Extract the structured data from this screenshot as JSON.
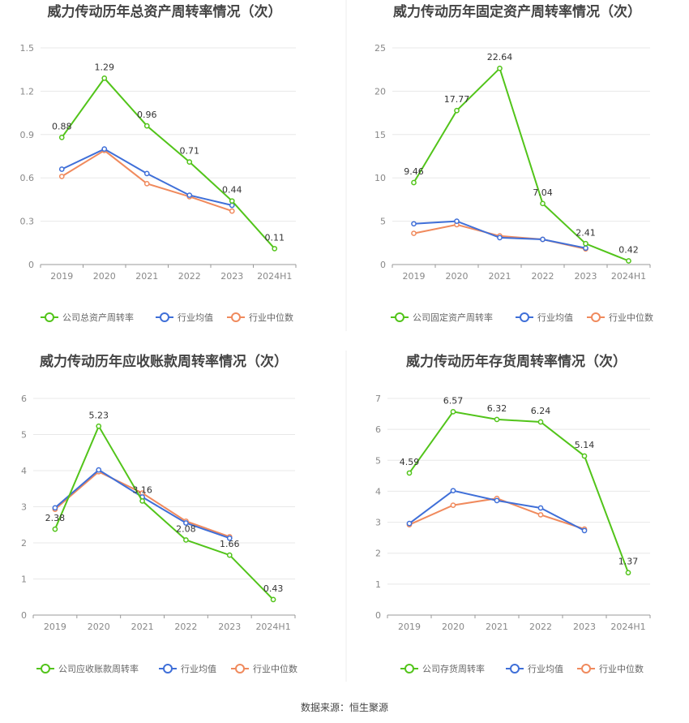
{
  "colors": {
    "company": "#52c41a",
    "mean": "#3f6fd8",
    "median": "#f08a5d"
  },
  "legend": {
    "mean": "行业均值",
    "median": "行业中位数"
  },
  "source": "数据来源：恒生聚源",
  "chart_data": [
    {
      "type": "line",
      "title": "威力传动历年总资产周转率情况（次）",
      "categories": [
        "2019",
        "2020",
        "2021",
        "2022",
        "2023",
        "2024H1"
      ],
      "yticks": [
        "0",
        "0.3",
        "0.6",
        "0.9",
        "1.2",
        "1.5"
      ],
      "ylim": [
        0,
        1.5
      ],
      "grid": true,
      "legend_position": "bottom",
      "series": [
        {
          "name": "公司总资产周转率",
          "values": [
            0.88,
            1.29,
            0.96,
            0.71,
            0.44,
            0.11
          ],
          "labels": [
            "0.88",
            "1.29",
            "0.96",
            "0.71",
            "0.44",
            "0.11"
          ]
        },
        {
          "name": "行业均值",
          "values": [
            0.66,
            0.8,
            0.63,
            0.48,
            0.41,
            null
          ]
        },
        {
          "name": "行业中位数",
          "values": [
            0.61,
            0.79,
            0.56,
            0.47,
            0.37,
            null
          ]
        }
      ]
    },
    {
      "type": "line",
      "title": "威力传动历年固定资产周转率情况（次）",
      "categories": [
        "2019",
        "2020",
        "2021",
        "2022",
        "2023",
        "2024H1"
      ],
      "yticks": [
        "0",
        "5",
        "10",
        "15",
        "20",
        "25"
      ],
      "ylim": [
        0,
        25
      ],
      "grid": true,
      "legend_position": "bottom",
      "series": [
        {
          "name": "公司固定资产周转率",
          "values": [
            9.46,
            17.77,
            22.64,
            7.04,
            2.41,
            0.42
          ],
          "labels": [
            "9.46",
            "17.77",
            "22.64",
            "7.04",
            "2.41",
            "0.42"
          ]
        },
        {
          "name": "行业均值",
          "values": [
            4.7,
            5.0,
            3.1,
            2.9,
            1.9,
            null
          ]
        },
        {
          "name": "行业中位数",
          "values": [
            3.6,
            4.6,
            3.3,
            2.9,
            1.8,
            null
          ]
        }
      ]
    },
    {
      "type": "line",
      "title": "威力传动历年应收账款周转率情况（次）",
      "categories": [
        "2019",
        "2020",
        "2021",
        "2022",
        "2023",
        "2024H1"
      ],
      "yticks": [
        "0",
        "1",
        "2",
        "3",
        "4",
        "5",
        "6"
      ],
      "ylim": [
        0,
        6
      ],
      "grid": true,
      "legend_position": "bottom",
      "series": [
        {
          "name": "公司应收账款周转率",
          "values": [
            2.38,
            5.23,
            3.16,
            2.08,
            1.66,
            0.43
          ],
          "labels": [
            "2.38",
            "5.23",
            "3.16",
            "2.08",
            "1.66",
            "0.43"
          ]
        },
        {
          "name": "行业均值",
          "values": [
            2.97,
            4.02,
            3.27,
            2.55,
            2.13,
            null
          ]
        },
        {
          "name": "行业中位数",
          "values": [
            2.93,
            3.97,
            3.38,
            2.6,
            2.17,
            null
          ]
        }
      ]
    },
    {
      "type": "line",
      "title": "威力传动历年存货周转率情况（次）",
      "categories": [
        "2019",
        "2020",
        "2021",
        "2022",
        "2023",
        "2024H1"
      ],
      "yticks": [
        "0",
        "1",
        "2",
        "3",
        "4",
        "5",
        "6",
        "7"
      ],
      "ylim": [
        0,
        7
      ],
      "grid": true,
      "legend_position": "bottom",
      "series": [
        {
          "name": "公司存货周转率",
          "values": [
            4.59,
            6.57,
            6.32,
            6.24,
            5.14,
            1.37
          ],
          "labels": [
            "4.59",
            "6.57",
            "6.32",
            "6.24",
            "5.14",
            "1.37"
          ]
        },
        {
          "name": "行业均值",
          "values": [
            2.96,
            4.02,
            3.7,
            3.46,
            2.73,
            null
          ]
        },
        {
          "name": "行业中位数",
          "values": [
            2.92,
            3.55,
            3.77,
            3.24,
            2.78,
            null
          ]
        }
      ]
    }
  ]
}
